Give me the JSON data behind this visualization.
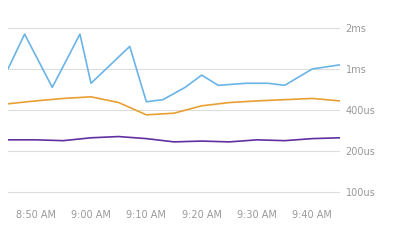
{
  "background_color": "#ffffff",
  "grid_color": "#dddddd",
  "tick_label_color": "#999999",
  "x_tick_labels": [
    "8:50 AM",
    "9:00 AM",
    "9:10 AM",
    "9:20 AM",
    "9:30 AM",
    "9:40 AM"
  ],
  "x_tick_positions": [
    5,
    15,
    25,
    35,
    45,
    55
  ],
  "y_ticks": [
    0,
    1,
    2,
    3,
    4
  ],
  "y_tick_labels": [
    "100us",
    "200us",
    "400us",
    "1ms",
    "2ms"
  ],
  "blue_line": {
    "color": "#6ab4e8",
    "x": [
      0,
      3,
      8,
      13,
      15,
      22,
      25,
      28,
      32,
      35,
      38,
      43,
      47,
      50,
      55,
      60
    ],
    "y": [
      3.0,
      3.85,
      2.55,
      3.85,
      2.65,
      3.55,
      2.2,
      2.25,
      2.55,
      2.85,
      2.6,
      2.65,
      2.65,
      2.6,
      3.0,
      3.1
    ]
  },
  "orange_line": {
    "color": "#e8a033",
    "x": [
      0,
      5,
      10,
      15,
      20,
      25,
      30,
      35,
      40,
      45,
      50,
      55,
      60
    ],
    "y": [
      2.15,
      2.22,
      2.28,
      2.32,
      2.18,
      1.88,
      1.92,
      2.1,
      2.18,
      2.22,
      2.25,
      2.28,
      2.22
    ]
  },
  "purple_line": {
    "color": "#6030a0",
    "x": [
      0,
      5,
      10,
      15,
      20,
      25,
      30,
      35,
      40,
      45,
      50,
      55,
      60
    ],
    "y": [
      1.27,
      1.27,
      1.25,
      1.32,
      1.35,
      1.3,
      1.22,
      1.24,
      1.22,
      1.27,
      1.25,
      1.3,
      1.32
    ]
  },
  "ylim": [
    -0.3,
    4.5
  ],
  "xlim": [
    0,
    60
  ]
}
